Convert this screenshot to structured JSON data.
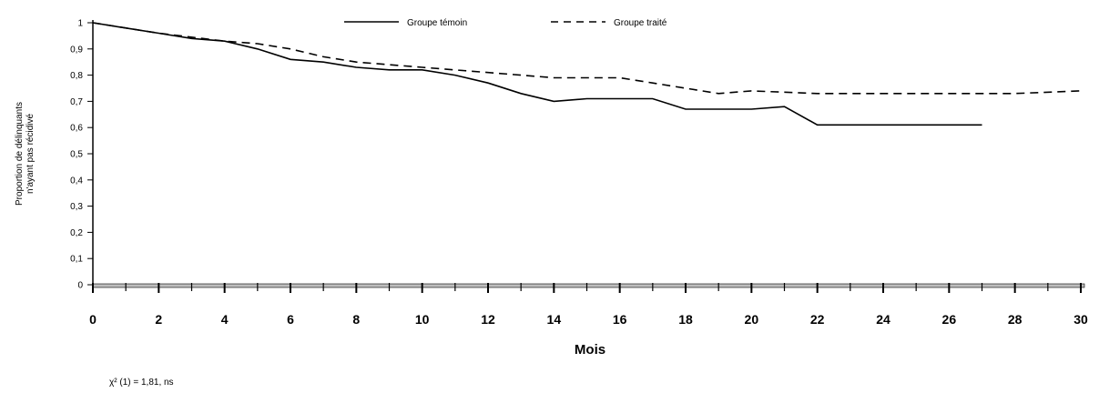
{
  "chart_data": {
    "type": "line",
    "xlabel": "Mois",
    "ylabel_lines": [
      "Proportion de délinquants",
      "n'ayant pas récidivé"
    ],
    "xlim": [
      0,
      30
    ],
    "ylim": [
      0,
      1
    ],
    "x_ticks": [
      0,
      2,
      4,
      6,
      8,
      10,
      12,
      14,
      16,
      18,
      20,
      22,
      24,
      26,
      28,
      30
    ],
    "y_ticks": [
      {
        "value": 0,
        "label": "0"
      },
      {
        "value": 0.1,
        "label": "0,1"
      },
      {
        "value": 0.2,
        "label": "0,2"
      },
      {
        "value": 0.3,
        "label": "0,3"
      },
      {
        "value": 0.4,
        "label": "0,4"
      },
      {
        "value": 0.5,
        "label": "0,5"
      },
      {
        "value": 0.6,
        "label": "0,6"
      },
      {
        "value": 0.7,
        "label": "0,7"
      },
      {
        "value": 0.8,
        "label": "0,8"
      },
      {
        "value": 0.9,
        "label": "0,9"
      },
      {
        "value": 1,
        "label": "1"
      }
    ],
    "grid": false,
    "legend_position": "top",
    "series": [
      {
        "name": "Groupe témoin",
        "style": "solid",
        "color": "#000000",
        "points": [
          [
            0,
            1.0
          ],
          [
            1,
            0.98
          ],
          [
            2,
            0.96
          ],
          [
            3,
            0.94
          ],
          [
            4,
            0.93
          ],
          [
            5,
            0.9
          ],
          [
            6,
            0.86
          ],
          [
            7,
            0.85
          ],
          [
            8,
            0.83
          ],
          [
            9,
            0.82
          ],
          [
            10,
            0.82
          ],
          [
            11,
            0.8
          ],
          [
            12,
            0.77
          ],
          [
            13,
            0.73
          ],
          [
            14,
            0.7
          ],
          [
            15,
            0.71
          ],
          [
            16,
            0.71
          ],
          [
            17,
            0.71
          ],
          [
            18,
            0.67
          ],
          [
            19,
            0.67
          ],
          [
            20,
            0.67
          ],
          [
            21,
            0.68
          ],
          [
            22,
            0.61
          ],
          [
            23,
            0.61
          ],
          [
            24,
            0.61
          ],
          [
            25,
            0.61
          ],
          [
            26,
            0.61
          ],
          [
            27,
            0.61
          ]
        ]
      },
      {
        "name": "Groupe traité",
        "style": "dashed",
        "color": "#000000",
        "points": [
          [
            0,
            1.0
          ],
          [
            2,
            0.96
          ],
          [
            4,
            0.93
          ],
          [
            5,
            0.92
          ],
          [
            6,
            0.9
          ],
          [
            7,
            0.87
          ],
          [
            8,
            0.85
          ],
          [
            10,
            0.83
          ],
          [
            12,
            0.81
          ],
          [
            14,
            0.79
          ],
          [
            16,
            0.79
          ],
          [
            17,
            0.77
          ],
          [
            18,
            0.75
          ],
          [
            19,
            0.73
          ],
          [
            20,
            0.74
          ],
          [
            22,
            0.73
          ],
          [
            24,
            0.73
          ],
          [
            26,
            0.73
          ],
          [
            28,
            0.73
          ],
          [
            30,
            0.74
          ]
        ]
      }
    ]
  },
  "stat_note": "χ² (1) = 1,81, ns"
}
